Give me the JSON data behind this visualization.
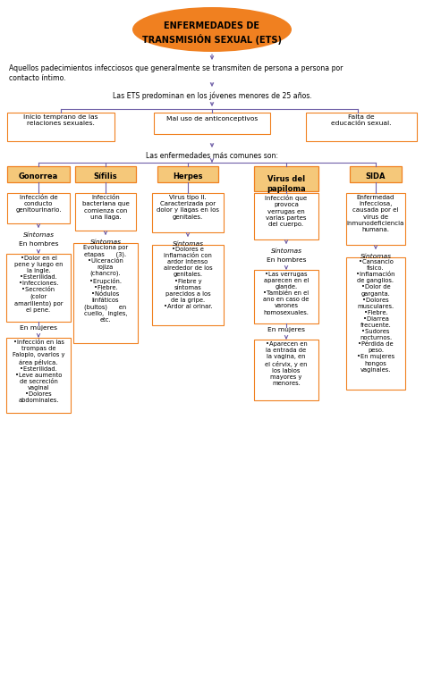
{
  "title_line1": "ENFERMEDADES DE",
  "title_line2": "TRANSMISIÓN SEXUAL (ETS)",
  "title_ellipse_color": "#F08020",
  "bg_color": "#FFFFFF",
  "orange": "#F08020",
  "purple": "#7060A8",
  "black": "#000000",
  "text1": "Aquellos padecimientos infecciosos que generalmente se transmiten de persona a persona por\ncontacto íntimo.",
  "text2": "Las ETS predominan en los jóvenes menores de 25 años.",
  "cause1": "Inicio temprano de las\nrelaciones sexuales.",
  "cause2": "Mal uso de anticonceptivos",
  "cause3": "Falta de\neducación sexual.",
  "text3": "Las enfermedades más comunes son:",
  "dis1": "Gonorrea",
  "dis2": "Sífilis",
  "dis3": "Herpes",
  "dis4": "Virus del\npapiloma",
  "dis5": "SIDA",
  "def1": "Infección de\nconducto\ngenitourinario.",
  "def2": "Infección\nbacteriana que\ncomienza con\nuna llaga.",
  "def3": "Virus tipo II.\nCaracterizada por\ndolor y llagas en los\ngenitales.",
  "def4": "Infección que\nprovoca\nverrugas en\nvarias partes\ndel cuerpo.",
  "def5": "Enfermedad\ninfecciosa,\ncausada por el\nvirus de\ninmunodeficiencia\nhumana.",
  "sintomas": "Síntomas",
  "en_hombres": "En hombres",
  "en_mujeres": "En mujeres",
  "g_hombres": "•Dolor en el\npene y luego en\nla ingle.\n•Esterilidad.\n•Infecciones.\n•Secreción\n(color\namarillento) por\nel pene.",
  "g_mujeres": "•Infección en las\ntrompas de\nFalopio, ovarios y\nárea pélvica.\n•Esterilidad.\n•Leve aumento\nde secreción\nvaginal\n•Dolores\nabdominales.",
  "sif_sint": "Evoluciona por\netapas      (3).\n•Ulceración\nrojiza\n(chancro).\n•Erupción.\n•Fiebre.\n•Nódulos\nlinfáticos\n(bultos)      en\ncuello,  ingles,\netc.",
  "herp_sint": "•Dolores e\ninflamación con\nardor intenso\nalrededor de los\ngenitales.\n•Fiebre y\nsíntomas\nparecidos a los\nde la gripe.\n•Ardor al orinar.",
  "pap_hombres": "•Las verrugas\naparecen en el\nglande.\n•También en el\nano en caso de\nvarones\nhomosexuales.",
  "pap_mujeres": "•Aparecen en\nla entrada de\nla vagina, en\nel cérvix, y en\nlos labios\nmayores y\nmenores.",
  "sida_sint": "•Cansancio\nfísico.\n•Inflamación\nde ganglios.\n•Dolor de\ngarganta.\n•Dolores\nmusculares.\n•Fiebre.\n•Diarrea\nfrecuente.\n•Sudores\nnocturnos.\n•Pérdida de\npeso.\n•En mujeres\nhongos\nvaginales."
}
